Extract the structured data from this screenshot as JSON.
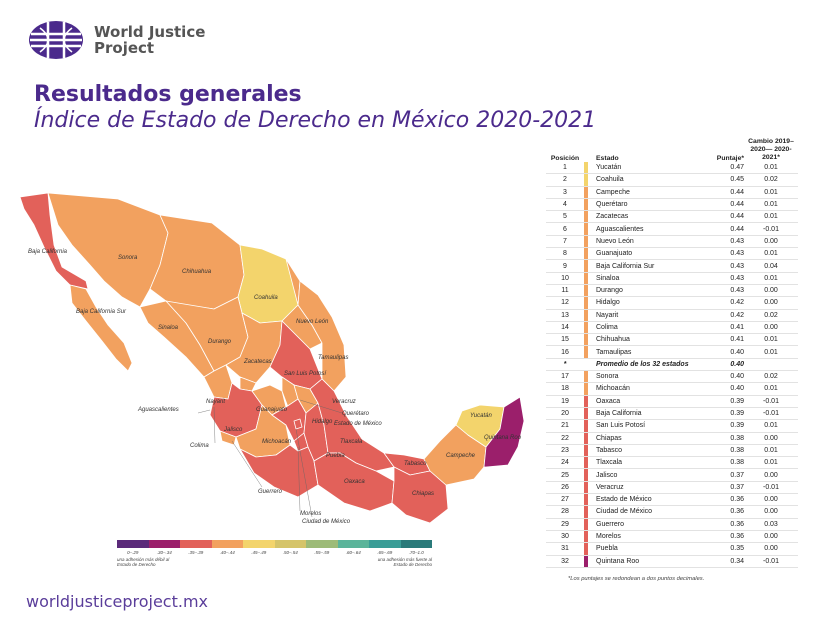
{
  "header": {
    "org_line1": "World Justice",
    "org_line2": "Project",
    "title": "Resultados generales",
    "subtitle": "Índice de Estado de Derecho en México 2020-2021"
  },
  "footer": {
    "url": "worldjusticeproject.mx"
  },
  "colors": {
    "purple_dark": "#5b2a7a",
    "magenta": "#9b1f6b",
    "red": "#e2615a",
    "orange": "#f2a15f",
    "yellow": "#f3d46c",
    "accent": "#4b2a8c"
  },
  "map_labels": {
    "baja_california": "Baja California",
    "baja_california_sur": "Baja California Sur",
    "sonora": "Sonora",
    "chihuahua": "Chihuahua",
    "coahuila": "Coahuila",
    "nuevo_leon": "Nuevo León",
    "tamaulipas": "Tamaulipas",
    "sinaloa": "Sinaloa",
    "durango": "Durango",
    "zacatecas": "Zacatecas",
    "san_luis_potosi": "San Luis Potosí",
    "nayarit": "Nayarit",
    "aguascalientes": "Aguascalientes",
    "guanajuato": "Guanajuato",
    "queretaro": "Querétaro",
    "hidalgo": "Hidalgo",
    "veracruz": "Veracruz",
    "jalisco": "Jalisco",
    "colima": "Colima",
    "michoacan": "Michoacán",
    "estado_mexico": "Estado de México",
    "tlaxcala": "Tlaxcala",
    "puebla": "Puebla",
    "guerrero": "Guerrero",
    "morelos": "Morelos",
    "cdmx": "Ciudad de México",
    "oaxaca": "Oaxaca",
    "chiapas": "Chiapas",
    "tabasco": "Tabasco",
    "campeche": "Campeche",
    "yucatan": "Yucatán",
    "quintana_roo": "Quintana Roo"
  },
  "legend": {
    "ranges": [
      "0–.29",
      ".30–.34",
      ".35–.39",
      ".40–.44",
      ".45–.49",
      ".50–.54",
      ".55–.59",
      ".60–.64",
      ".65–.69",
      ".70–1.0"
    ],
    "colors": [
      "#5b2a7a",
      "#9b1f6b",
      "#e2615a",
      "#f2a15f",
      "#f3d46c",
      "#d5c46a",
      "#9dbb78",
      "#5bb49a",
      "#3a9d97",
      "#2a7a7a"
    ],
    "note_left": "una adhesión más débil al Estado de Derecho",
    "note_right": "una adhesión más fuerte al Estado de Derecho"
  },
  "table": {
    "headers": {
      "position": "Posición",
      "state": "Estado",
      "score": "Puntaje*",
      "change": "Cambio 2019–2020— 2020-2021*"
    },
    "average": {
      "pos": "*",
      "state": "Promedio de los 32 estados",
      "score": "0.40"
    },
    "rows": [
      {
        "pos": "1",
        "state": "Yucatán",
        "score": "0.47",
        "change": "0.01",
        "color": "#f3d46c"
      },
      {
        "pos": "2",
        "state": "Coahuila",
        "score": "0.45",
        "change": "0.02",
        "color": "#f3d46c"
      },
      {
        "pos": "3",
        "state": "Campeche",
        "score": "0.44",
        "change": "0.01",
        "color": "#f2a15f"
      },
      {
        "pos": "4",
        "state": "Querétaro",
        "score": "0.44",
        "change": "0.01",
        "color": "#f2a15f"
      },
      {
        "pos": "5",
        "state": "Zacatecas",
        "score": "0.44",
        "change": "0.01",
        "color": "#f2a15f"
      },
      {
        "pos": "6",
        "state": "Aguascalientes",
        "score": "0.44",
        "change": "-0.01",
        "color": "#f2a15f"
      },
      {
        "pos": "7",
        "state": "Nuevo León",
        "score": "0.43",
        "change": "0.00",
        "color": "#f2a15f"
      },
      {
        "pos": "8",
        "state": "Guanajuato",
        "score": "0.43",
        "change": "0.01",
        "color": "#f2a15f"
      },
      {
        "pos": "9",
        "state": "Baja California Sur",
        "score": "0.43",
        "change": "0.04",
        "color": "#f2a15f"
      },
      {
        "pos": "10",
        "state": "Sinaloa",
        "score": "0.43",
        "change": "0.01",
        "color": "#f2a15f"
      },
      {
        "pos": "11",
        "state": "Durango",
        "score": "0.43",
        "change": "0.00",
        "color": "#f2a15f"
      },
      {
        "pos": "12",
        "state": "Hidalgo",
        "score": "0.42",
        "change": "0.00",
        "color": "#f2a15f"
      },
      {
        "pos": "13",
        "state": "Nayarit",
        "score": "0.42",
        "change": "0.02",
        "color": "#f2a15f"
      },
      {
        "pos": "14",
        "state": "Colima",
        "score": "0.41",
        "change": "0.00",
        "color": "#f2a15f"
      },
      {
        "pos": "15",
        "state": "Chihuahua",
        "score": "0.41",
        "change": "0.01",
        "color": "#f2a15f"
      },
      {
        "pos": "16",
        "state": "Tamaulipas",
        "score": "0.40",
        "change": "0.01",
        "color": "#f2a15f"
      },
      {
        "pos": "17",
        "state": "Sonora",
        "score": "0.40",
        "change": "0.02",
        "color": "#f2a15f"
      },
      {
        "pos": "18",
        "state": "Michoacán",
        "score": "0.40",
        "change": "0.01",
        "color": "#f2a15f"
      },
      {
        "pos": "19",
        "state": "Oaxaca",
        "score": "0.39",
        "change": "-0.01",
        "color": "#e2615a"
      },
      {
        "pos": "20",
        "state": "Baja California",
        "score": "0.39",
        "change": "-0.01",
        "color": "#e2615a"
      },
      {
        "pos": "21",
        "state": "San Luis Potosí",
        "score": "0.39",
        "change": "0.01",
        "color": "#e2615a"
      },
      {
        "pos": "22",
        "state": "Chiapas",
        "score": "0.38",
        "change": "0.00",
        "color": "#e2615a"
      },
      {
        "pos": "23",
        "state": "Tabasco",
        "score": "0.38",
        "change": "0.01",
        "color": "#e2615a"
      },
      {
        "pos": "24",
        "state": "Tlaxcala",
        "score": "0.38",
        "change": "0.01",
        "color": "#e2615a"
      },
      {
        "pos": "25",
        "state": "Jalisco",
        "score": "0.37",
        "change": "0.00",
        "color": "#e2615a"
      },
      {
        "pos": "26",
        "state": "Veracruz",
        "score": "0.37",
        "change": "-0.01",
        "color": "#e2615a"
      },
      {
        "pos": "27",
        "state": "Estado de México",
        "score": "0.36",
        "change": "0.00",
        "color": "#e2615a"
      },
      {
        "pos": "28",
        "state": "Ciudad de México",
        "score": "0.36",
        "change": "0.00",
        "color": "#e2615a"
      },
      {
        "pos": "29",
        "state": "Guerrero",
        "score": "0.36",
        "change": "0.03",
        "color": "#e2615a"
      },
      {
        "pos": "30",
        "state": "Morelos",
        "score": "0.36",
        "change": "0.00",
        "color": "#e2615a"
      },
      {
        "pos": "31",
        "state": "Puebla",
        "score": "0.35",
        "change": "0.00",
        "color": "#e2615a"
      },
      {
        "pos": "32",
        "state": "Quintana Roo",
        "score": "0.34",
        "change": "-0.01",
        "color": "#9b1f6b"
      }
    ],
    "footnote": "*Los puntajes se redondean a dos puntos decimales."
  }
}
